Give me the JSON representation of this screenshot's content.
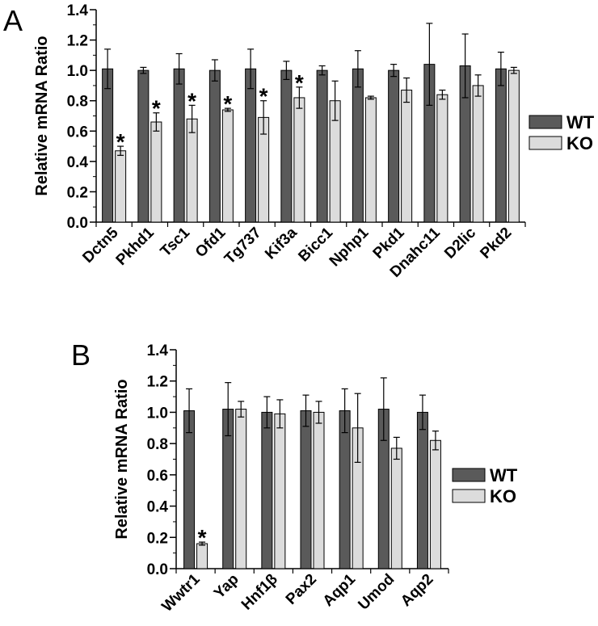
{
  "chart_data": [
    {
      "panel": "A",
      "type": "bar",
      "ylabel": "Relative mRNA Ratio",
      "ylim": [
        0,
        1.4
      ],
      "yticks": [
        "0.0",
        "0.2",
        "0.4",
        "0.6",
        "0.8",
        "1.0",
        "1.2",
        "1.4"
      ],
      "categories": [
        "Dctn5",
        "Pkhd1",
        "Tsc1",
        "Ofd1",
        "Tg737",
        "Kif3a",
        "Bicc1",
        "Nphp1",
        "Pkd1",
        "Dnahc11",
        "D2lic",
        "Pkd2"
      ],
      "series": [
        {
          "name": "WT",
          "color": "#5a5a5a",
          "values": [
            1.01,
            1.0,
            1.01,
            1.0,
            1.01,
            1.0,
            1.0,
            1.01,
            1.0,
            1.04,
            1.03,
            1.01
          ],
          "errors": [
            0.13,
            0.02,
            0.1,
            0.07,
            0.13,
            0.06,
            0.03,
            0.12,
            0.04,
            0.27,
            0.21,
            0.11
          ]
        },
        {
          "name": "KO",
          "color": "#dcdcdc",
          "values": [
            0.47,
            0.66,
            0.68,
            0.74,
            0.69,
            0.82,
            0.8,
            0.82,
            0.87,
            0.84,
            0.9,
            1.0
          ],
          "errors": [
            0.03,
            0.06,
            0.09,
            0.01,
            0.11,
            0.07,
            0.13,
            0.01,
            0.08,
            0.03,
            0.07,
            0.02
          ]
        }
      ],
      "significant_ko": [
        true,
        true,
        true,
        true,
        true,
        true,
        false,
        false,
        false,
        false,
        false,
        false
      ],
      "legend": {
        "labels": [
          "WT",
          "KO"
        ],
        "position": "right"
      },
      "grid": false
    },
    {
      "panel": "B",
      "type": "bar",
      "ylabel": "Relative mRNA Ratio",
      "ylim": [
        0,
        1.4
      ],
      "yticks": [
        "0.0",
        "0.2",
        "0.4",
        "0.6",
        "0.8",
        "1.0",
        "1.2",
        "1.4"
      ],
      "categories": [
        "Wwtr1",
        "Yap",
        "Hnf1β",
        "Pax2",
        "Aqp1",
        "Umod",
        "Aqp2"
      ],
      "series": [
        {
          "name": "WT",
          "color": "#5a5a5a",
          "values": [
            1.01,
            1.02,
            1.0,
            1.01,
            1.01,
            1.02,
            1.0
          ],
          "errors": [
            0.14,
            0.17,
            0.1,
            0.1,
            0.14,
            0.2,
            0.11
          ]
        },
        {
          "name": "KO",
          "color": "#dcdcdc",
          "values": [
            0.16,
            1.02,
            0.99,
            1.0,
            0.9,
            0.77,
            0.82
          ],
          "errors": [
            0.01,
            0.05,
            0.09,
            0.07,
            0.22,
            0.07,
            0.06
          ]
        }
      ],
      "significant_ko": [
        true,
        false,
        false,
        false,
        false,
        false,
        false
      ],
      "legend": {
        "labels": [
          "WT",
          "KO"
        ],
        "position": "right"
      },
      "grid": false
    }
  ]
}
